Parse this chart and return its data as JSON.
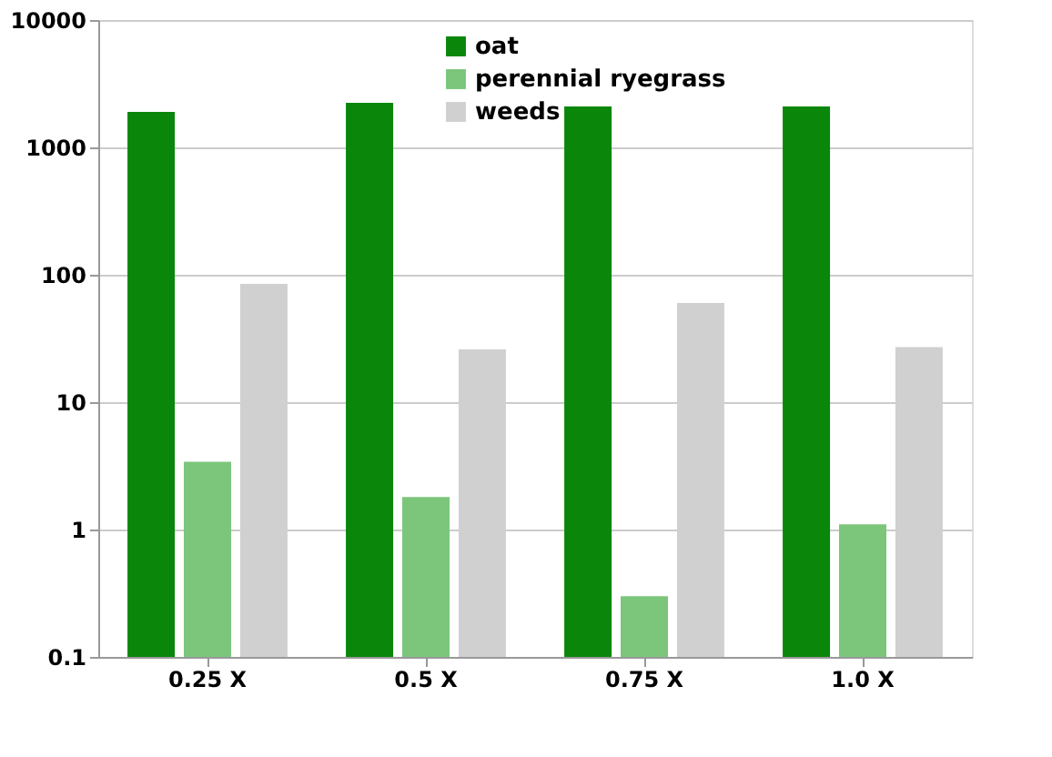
{
  "chart_data": {
    "type": "bar",
    "categories": [
      "0.25 X",
      "0.5 X",
      "0.75 X",
      "1.0 X"
    ],
    "series": [
      {
        "name": "oat",
        "color": "#0a870a",
        "values": [
          1900,
          2240,
          2100,
          2100
        ]
      },
      {
        "name": "perennial ryegrass",
        "color": "#7cc67c",
        "values": [
          3.4,
          1.8,
          0.3,
          1.1
        ]
      },
      {
        "name": "weeds",
        "color": "#d0d0d0",
        "values": [
          85,
          26,
          60,
          27
        ]
      }
    ],
    "log": true,
    "ylim": [
      0.1,
      10000
    ],
    "yticks": [
      0.1,
      1,
      10,
      100,
      1000,
      10000
    ],
    "grid": "y",
    "legend": "top"
  }
}
